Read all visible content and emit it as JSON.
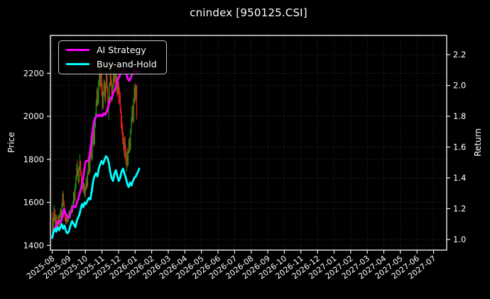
{
  "title": "cnindex [950125.CSI]",
  "colors": {
    "background": "#000000",
    "foreground": "#ffffff",
    "grid": "#3a3a3a",
    "up_candle": "#11a011",
    "down_candle": "#ef1d1d",
    "ai_strategy": "#ff00ff",
    "buy_and_hold": "#00ffff"
  },
  "axes": {
    "left": {
      "label": "Price"
    },
    "right": {
      "label": "Return"
    }
  },
  "legend": {
    "items": [
      {
        "label": "AI Strategy",
        "color": "#ff00ff"
      },
      {
        "label": "Buy-and-Hold",
        "color": "#00ffff"
      }
    ]
  },
  "chart_data": {
    "type": "candlestick",
    "title": "cnindex [950125.CSI]",
    "grid": true,
    "legend_position": "upper left",
    "x_axis": {
      "tick_labels": [
        "2025-08",
        "2025-09",
        "2025-10",
        "2025-11",
        "2025-12",
        "2026-01",
        "2026-02",
        "2026-03",
        "2026-04",
        "2026-05",
        "2026-06",
        "2026-07",
        "2026-08",
        "2026-09",
        "2026-10",
        "2026-11",
        "2026-12",
        "2027-01",
        "2027-02",
        "2027-03",
        "2027-04",
        "2027-05",
        "2027-06",
        "2027-07"
      ],
      "label_rotation_deg": -38
    },
    "price_axis": {
      "label": "Price",
      "ticks": [
        1400,
        1600,
        1800,
        2000,
        2200
      ],
      "range": [
        1378,
        2376
      ]
    },
    "return_axis": {
      "label": "Return",
      "ticks": [
        1.0,
        1.2,
        1.4,
        1.6,
        1.8,
        2.0,
        2.2
      ],
      "range": [
        0.931,
        2.325
      ]
    },
    "candles": {
      "up_color": "#11a011",
      "down_color": "#ef1d1d",
      "start_month": 0.02,
      "month_step": 0.047,
      "ohlc": [
        [
          1548,
          1555,
          1445,
          1458
        ],
        [
          1458,
          1530,
          1452,
          1522
        ],
        [
          1522,
          1588,
          1515,
          1562
        ],
        [
          1562,
          1570,
          1495,
          1508
        ],
        [
          1508,
          1545,
          1482,
          1535
        ],
        [
          1535,
          1542,
          1475,
          1488
        ],
        [
          1488,
          1512,
          1462,
          1502
        ],
        [
          1502,
          1542,
          1495,
          1528
        ],
        [
          1528,
          1535,
          1482,
          1495
        ],
        [
          1495,
          1548,
          1490,
          1538
        ],
        [
          1538,
          1572,
          1528,
          1560
        ],
        [
          1560,
          1565,
          1512,
          1522
        ],
        [
          1522,
          1598,
          1518,
          1588
        ],
        [
          1588,
          1655,
          1578,
          1638
        ],
        [
          1638,
          1645,
          1582,
          1595
        ],
        [
          1595,
          1608,
          1545,
          1552
        ],
        [
          1552,
          1560,
          1512,
          1525
        ],
        [
          1525,
          1545,
          1498,
          1512
        ],
        [
          1512,
          1532,
          1498,
          1525
        ],
        [
          1525,
          1540,
          1505,
          1512
        ],
        [
          1512,
          1548,
          1508,
          1540
        ],
        [
          1540,
          1562,
          1530,
          1555
        ],
        [
          1555,
          1560,
          1522,
          1532
        ],
        [
          1532,
          1570,
          1528,
          1562
        ],
        [
          1562,
          1588,
          1555,
          1580
        ],
        [
          1580,
          1585,
          1548,
          1558
        ],
        [
          1558,
          1605,
          1552,
          1598
        ],
        [
          1598,
          1648,
          1590,
          1640
        ],
        [
          1640,
          1660,
          1595,
          1610
        ],
        [
          1610,
          1688,
          1605,
          1680
        ],
        [
          1680,
          1728,
          1660,
          1715
        ],
        [
          1715,
          1780,
          1705,
          1762
        ],
        [
          1762,
          1798,
          1722,
          1740
        ],
        [
          1740,
          1755,
          1682,
          1695
        ],
        [
          1695,
          1768,
          1690,
          1758
        ],
        [
          1758,
          1822,
          1748,
          1790
        ],
        [
          1790,
          1795,
          1722,
          1735
        ],
        [
          1735,
          1748,
          1678,
          1690
        ],
        [
          1690,
          1718,
          1662,
          1705
        ],
        [
          1705,
          1712,
          1648,
          1660
        ],
        [
          1660,
          1692,
          1640,
          1682
        ],
        [
          1682,
          1688,
          1625,
          1638
        ],
        [
          1638,
          1672,
          1622,
          1660
        ],
        [
          1660,
          1712,
          1652,
          1700
        ],
        [
          1700,
          1722,
          1662,
          1675
        ],
        [
          1675,
          1748,
          1670,
          1738
        ],
        [
          1738,
          1802,
          1730,
          1788
        ],
        [
          1788,
          1800,
          1725,
          1742
        ],
        [
          1742,
          1825,
          1738,
          1812
        ],
        [
          1812,
          1870,
          1800,
          1855
        ],
        [
          1855,
          1868,
          1788,
          1805
        ],
        [
          1805,
          1892,
          1798,
          1878
        ],
        [
          1878,
          1942,
          1865,
          1925
        ],
        [
          1925,
          1938,
          1855,
          1872
        ],
        [
          1872,
          1968,
          1868,
          1952
        ],
        [
          1952,
          2015,
          1945,
          2000
        ],
        [
          2000,
          2078,
          1992,
          2062
        ],
        [
          2062,
          2135,
          2050,
          2120
        ],
        [
          2120,
          2128,
          2042,
          2060
        ],
        [
          2060,
          2168,
          2055,
          2150
        ],
        [
          2150,
          2245,
          2140,
          2228
        ],
        [
          2228,
          2238,
          2125,
          2145
        ],
        [
          2145,
          2230,
          2138,
          2212
        ],
        [
          2212,
          2222,
          2095,
          2112
        ],
        [
          2112,
          2152,
          2028,
          2042
        ],
        [
          2042,
          2118,
          2035,
          2105
        ],
        [
          2105,
          2172,
          2095,
          2158
        ],
        [
          2158,
          2165,
          2072,
          2088
        ],
        [
          2088,
          2150,
          2060,
          2138
        ],
        [
          2138,
          2210,
          2130,
          2195
        ],
        [
          2195,
          2205,
          2108,
          2125
        ],
        [
          2125,
          2138,
          2018,
          2035
        ],
        [
          2035,
          2092,
          1985,
          2072
        ],
        [
          2072,
          2158,
          2065,
          2145
        ],
        [
          2145,
          2240,
          2138,
          2218
        ],
        [
          2218,
          2228,
          2142,
          2160
        ],
        [
          2160,
          2172,
          2065,
          2082
        ],
        [
          2082,
          2148,
          2075,
          2135
        ],
        [
          2135,
          2202,
          2128,
          2188
        ],
        [
          2188,
          2248,
          2145,
          2165
        ],
        [
          2165,
          2212,
          2158,
          2198
        ],
        [
          2198,
          2205,
          2112,
          2128
        ],
        [
          2128,
          2195,
          2120,
          2180
        ],
        [
          2180,
          2188,
          2092,
          2108
        ],
        [
          2108,
          2170,
          2100,
          2155
        ],
        [
          2155,
          2162,
          2060,
          2078
        ],
        [
          2078,
          2135,
          2052,
          2065
        ],
        [
          2065,
          2112,
          2012,
          2028
        ],
        [
          2028,
          2042,
          1945,
          1958
        ],
        [
          1958,
          2005,
          1918,
          1932
        ],
        [
          1932,
          1968,
          1872,
          1888
        ],
        [
          1888,
          1925,
          1842,
          1858
        ],
        [
          1858,
          1902,
          1815,
          1895
        ],
        [
          1895,
          1908,
          1802,
          1822
        ],
        [
          1822,
          1868,
          1775,
          1792
        ],
        [
          1792,
          1835,
          1742,
          1812
        ],
        [
          1812,
          1852,
          1762,
          1778
        ],
        [
          1778,
          1845,
          1770,
          1835
        ],
        [
          1835,
          1898,
          1828,
          1885
        ],
        [
          1885,
          1902,
          1832,
          1848
        ],
        [
          1848,
          1942,
          1842,
          1928
        ],
        [
          1928,
          1995,
          1920,
          1982
        ],
        [
          1982,
          2048,
          1975,
          2035
        ],
        [
          2035,
          2052,
          1962,
          1978
        ],
        [
          1978,
          2085,
          1972,
          2068
        ],
        [
          2068,
          2148,
          2060,
          2132
        ],
        [
          2132,
          2155,
          2065,
          2085
        ],
        [
          2085,
          2145,
          2078,
          2138
        ],
        [
          2138,
          2148,
          1985,
          2002
        ]
      ]
    },
    "series": [
      {
        "name": "AI Strategy",
        "color": "#ff00ff",
        "axis": "return",
        "points": [
          [
            0.0,
            1.02
          ],
          [
            0.12,
            1.06
          ],
          [
            0.24,
            1.09
          ],
          [
            0.37,
            1.12
          ],
          [
            0.5,
            1.11
          ],
          [
            0.63,
            1.15
          ],
          [
            0.72,
            1.2
          ],
          [
            0.8,
            1.17
          ],
          [
            0.89,
            1.15
          ],
          [
            1.01,
            1.14
          ],
          [
            1.14,
            1.18
          ],
          [
            1.27,
            1.22
          ],
          [
            1.4,
            1.21
          ],
          [
            1.53,
            1.25
          ],
          [
            1.66,
            1.3
          ],
          [
            1.74,
            1.33
          ],
          [
            1.83,
            1.37
          ],
          [
            1.91,
            1.43
          ],
          [
            2.0,
            1.5
          ],
          [
            2.08,
            1.51
          ],
          [
            2.17,
            1.51
          ],
          [
            2.26,
            1.55
          ],
          [
            2.34,
            1.62
          ],
          [
            2.43,
            1.7
          ],
          [
            2.51,
            1.76
          ],
          [
            2.6,
            1.79
          ],
          [
            2.68,
            1.8
          ],
          [
            2.77,
            1.81
          ],
          [
            2.85,
            1.8
          ],
          [
            2.94,
            1.81
          ],
          [
            3.03,
            1.8
          ],
          [
            3.11,
            1.82
          ],
          [
            3.2,
            1.81
          ],
          [
            3.28,
            1.83
          ],
          [
            3.37,
            1.86
          ],
          [
            3.45,
            1.89
          ],
          [
            3.54,
            1.92
          ],
          [
            3.63,
            1.93
          ],
          [
            3.71,
            1.96
          ],
          [
            3.8,
            1.98
          ],
          [
            3.88,
            2.01
          ],
          [
            3.97,
            2.04
          ],
          [
            4.05,
            2.06
          ],
          [
            4.14,
            2.08
          ],
          [
            4.22,
            2.09
          ],
          [
            4.31,
            2.1
          ],
          [
            4.4,
            2.09
          ],
          [
            4.48,
            2.07
          ],
          [
            4.57,
            2.04
          ],
          [
            4.65,
            2.03
          ],
          [
            4.74,
            2.05
          ],
          [
            4.82,
            2.07
          ],
          [
            4.91,
            2.09
          ],
          [
            4.99,
            2.1
          ],
          [
            5.08,
            2.09
          ],
          [
            5.16,
            2.08
          ],
          [
            5.25,
            2.09
          ]
        ]
      },
      {
        "name": "Buy-and-Hold",
        "color": "#00ffff",
        "axis": "return",
        "points": [
          [
            0.0,
            1.01
          ],
          [
            0.08,
            1.05
          ],
          [
            0.16,
            1.07
          ],
          [
            0.24,
            1.05
          ],
          [
            0.33,
            1.08
          ],
          [
            0.42,
            1.06
          ],
          [
            0.5,
            1.08
          ],
          [
            0.58,
            1.1
          ],
          [
            0.66,
            1.07
          ],
          [
            0.74,
            1.09
          ],
          [
            0.82,
            1.06
          ],
          [
            0.9,
            1.04
          ],
          [
            1.0,
            1.05
          ],
          [
            1.1,
            1.09
          ],
          [
            1.2,
            1.12
          ],
          [
            1.3,
            1.1
          ],
          [
            1.4,
            1.08
          ],
          [
            1.48,
            1.12
          ],
          [
            1.56,
            1.14
          ],
          [
            1.64,
            1.16
          ],
          [
            1.72,
            1.2
          ],
          [
            1.8,
            1.23
          ],
          [
            1.88,
            1.21
          ],
          [
            1.96,
            1.24
          ],
          [
            2.04,
            1.23
          ],
          [
            2.12,
            1.25
          ],
          [
            2.21,
            1.27
          ],
          [
            2.3,
            1.26
          ],
          [
            2.38,
            1.31
          ],
          [
            2.47,
            1.38
          ],
          [
            2.55,
            1.41
          ],
          [
            2.64,
            1.43
          ],
          [
            2.73,
            1.41
          ],
          [
            2.81,
            1.46
          ],
          [
            2.9,
            1.49
          ],
          [
            2.98,
            1.51
          ],
          [
            3.07,
            1.49
          ],
          [
            3.16,
            1.52
          ],
          [
            3.24,
            1.54
          ],
          [
            3.33,
            1.53
          ],
          [
            3.41,
            1.5
          ],
          [
            3.5,
            1.44
          ],
          [
            3.58,
            1.4
          ],
          [
            3.67,
            1.38
          ],
          [
            3.76,
            1.43
          ],
          [
            3.84,
            1.45
          ],
          [
            3.93,
            1.41
          ],
          [
            4.01,
            1.38
          ],
          [
            4.1,
            1.4
          ],
          [
            4.18,
            1.44
          ],
          [
            4.27,
            1.46
          ],
          [
            4.35,
            1.43
          ],
          [
            4.44,
            1.4
          ],
          [
            4.53,
            1.36
          ],
          [
            4.61,
            1.34
          ],
          [
            4.7,
            1.37
          ],
          [
            4.78,
            1.35
          ],
          [
            4.87,
            1.38
          ],
          [
            4.95,
            1.4
          ],
          [
            5.04,
            1.41
          ],
          [
            5.13,
            1.43
          ],
          [
            5.25,
            1.46
          ]
        ]
      }
    ]
  }
}
